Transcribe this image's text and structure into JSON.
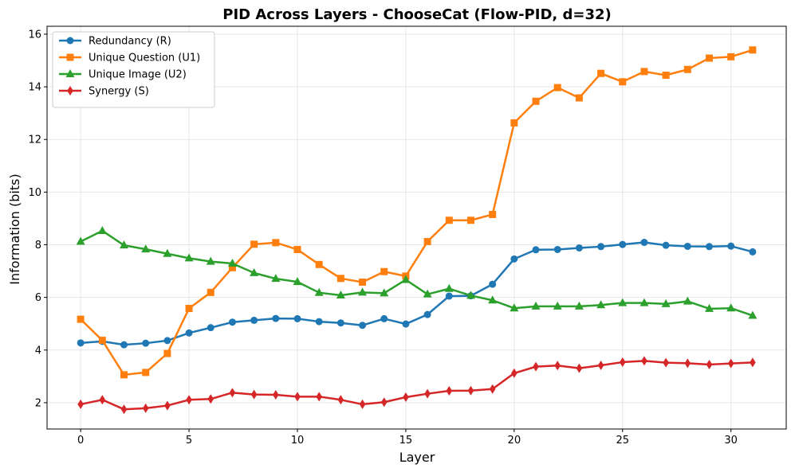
{
  "chart_data": {
    "type": "line",
    "title": "PID Across Layers - ChooseCat (Flow-PID, d=32)",
    "xlabel": "Layer",
    "ylabel": "Information (bits)",
    "xlim": [
      -1.55,
      32.55
    ],
    "ylim": [
      1.0,
      16.3
    ],
    "xticks": [
      0,
      5,
      10,
      15,
      20,
      25,
      30
    ],
    "yticks": [
      2,
      4,
      6,
      8,
      10,
      12,
      14,
      16
    ],
    "grid": true,
    "legend_position": "top-left",
    "x": [
      0,
      1,
      2,
      3,
      4,
      5,
      6,
      7,
      8,
      9,
      10,
      11,
      12,
      13,
      14,
      15,
      16,
      17,
      18,
      19,
      20,
      21,
      22,
      23,
      24,
      25,
      26,
      27,
      28,
      29,
      30,
      31
    ],
    "series": [
      {
        "name": "Redundancy (R)",
        "color": "#1f77b4",
        "marker": "circle",
        "values": [
          4.27,
          4.33,
          4.2,
          4.26,
          4.36,
          4.65,
          4.85,
          5.06,
          5.13,
          5.2,
          5.19,
          5.08,
          5.03,
          4.94,
          5.19,
          4.99,
          5.35,
          6.05,
          6.06,
          6.5,
          7.46,
          7.81,
          7.82,
          7.88,
          7.93,
          8.01,
          8.09,
          7.98,
          7.94,
          7.93,
          7.95,
          7.73
        ]
      },
      {
        "name": "Unique Question (U1)",
        "color": "#ff7f0e",
        "marker": "square",
        "values": [
          5.17,
          4.37,
          3.06,
          3.15,
          3.87,
          5.58,
          6.19,
          7.13,
          8.02,
          8.08,
          7.82,
          7.25,
          6.72,
          6.58,
          6.98,
          6.81,
          8.12,
          8.93,
          8.93,
          9.15,
          12.63,
          13.45,
          13.97,
          13.58,
          14.51,
          14.19,
          14.58,
          14.44,
          14.66,
          15.09,
          15.14,
          15.4
        ]
      },
      {
        "name": "Unique Image (U2)",
        "color": "#2ca02c",
        "marker": "triangle",
        "values": [
          8.12,
          8.53,
          7.98,
          7.83,
          7.66,
          7.49,
          7.36,
          7.29,
          6.93,
          6.71,
          6.59,
          6.18,
          6.08,
          6.19,
          6.16,
          6.67,
          6.12,
          6.33,
          6.07,
          5.89,
          5.59,
          5.66,
          5.66,
          5.66,
          5.71,
          5.79,
          5.79,
          5.75,
          5.85,
          5.57,
          5.59,
          5.31
        ]
      },
      {
        "name": "Synergy (S)",
        "color": "#d62728",
        "marker": "diamond",
        "values": [
          1.94,
          2.11,
          1.75,
          1.79,
          1.89,
          2.11,
          2.14,
          2.38,
          2.31,
          2.3,
          2.23,
          2.23,
          2.11,
          1.94,
          2.02,
          2.21,
          2.34,
          2.45,
          2.46,
          2.52,
          3.12,
          3.37,
          3.41,
          3.31,
          3.42,
          3.54,
          3.59,
          3.52,
          3.5,
          3.45,
          3.49,
          3.53
        ]
      }
    ]
  }
}
